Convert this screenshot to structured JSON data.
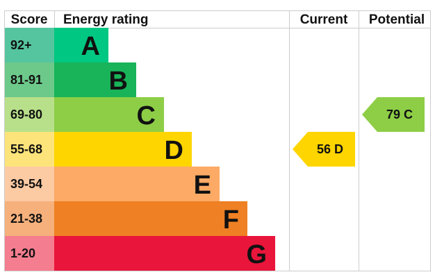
{
  "chart_data": {
    "type": "bar",
    "headers": {
      "score": "Score",
      "rating": "Energy rating",
      "current": "Current",
      "potential": "Potential"
    },
    "bands": [
      {
        "score": "92+",
        "letter": "A",
        "min": 92,
        "max": 100,
        "color": "#00c781",
        "score_bg": "#55c59f"
      },
      {
        "score": "81-91",
        "letter": "B",
        "min": 81,
        "max": 91,
        "color": "#19b459",
        "score_bg": "#6cc98a"
      },
      {
        "score": "69-80",
        "letter": "C",
        "min": 69,
        "max": 80,
        "color": "#8dce46",
        "score_bg": "#b8e08a"
      },
      {
        "score": "55-68",
        "letter": "D",
        "min": 55,
        "max": 68,
        "color": "#ffd500",
        "score_bg": "#fde47a"
      },
      {
        "score": "39-54",
        "letter": "E",
        "min": 39,
        "max": 54,
        "color": "#fcaa65",
        "score_bg": "#fccaa3"
      },
      {
        "score": "21-38",
        "letter": "F",
        "min": 21,
        "max": 38,
        "color": "#ef8023",
        "score_bg": "#f5b07c"
      },
      {
        "score": "1-20",
        "letter": "G",
        "min": 1,
        "max": 20,
        "color": "#e9153b",
        "score_bg": "#f47d8f"
      }
    ],
    "current": {
      "value": 56,
      "letter": "D",
      "label": "56  D",
      "color": "#ffd500"
    },
    "potential": {
      "value": 79,
      "letter": "C",
      "label": "79  C",
      "color": "#8dce46"
    }
  }
}
